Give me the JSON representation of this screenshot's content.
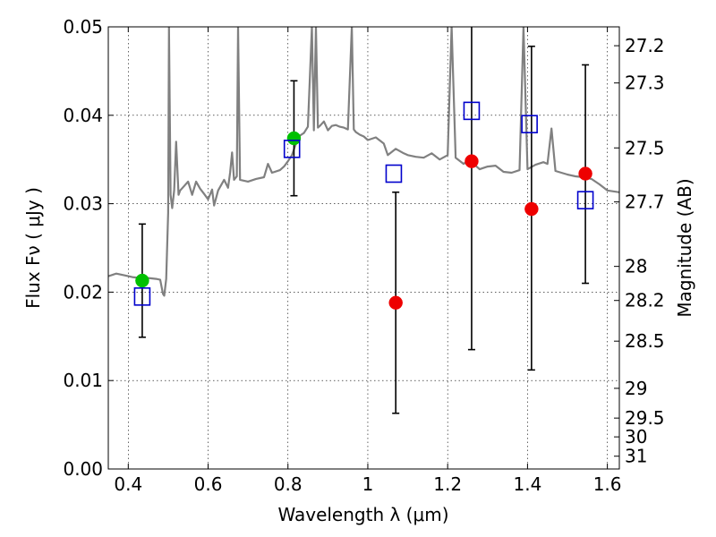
{
  "chart_data": {
    "type": "scatter",
    "title": "",
    "xlabel": "Wavelength  λ (μm)",
    "ylabel": "Flux  Fν  ( μJy )",
    "y2label": "Magnitude (AB)",
    "xlim": [
      0.35,
      1.63
    ],
    "ylim": [
      0.0,
      0.05
    ],
    "grid": true,
    "xticks": [
      0.4,
      0.6,
      0.8,
      1.0,
      1.2,
      1.4,
      1.6
    ],
    "xtick_labels": [
      "0.4",
      "0.6",
      "0.8",
      "1",
      "1.2",
      "1.4",
      "1.6"
    ],
    "yticks": [
      0.0,
      0.01,
      0.02,
      0.03,
      0.04,
      0.05
    ],
    "ytick_labels": [
      "0.00",
      "0.01",
      "0.02",
      "0.03",
      "0.04",
      "0.05"
    ],
    "magnitude_ticks": [
      "27.2",
      "27.3",
      "27.5",
      "27.7",
      "28",
      "28.2",
      "28.5",
      "29",
      "29.5",
      "30",
      "31"
    ],
    "colors": {
      "model": "#808080",
      "observed_green": "#00c000",
      "observed_red": "#ee0000",
      "model_flux": "#0000cc",
      "errorbar": "#000000"
    },
    "series": [
      {
        "kind": "line",
        "points": [
          [
            0.35,
            0.0218
          ],
          [
            0.37,
            0.0221
          ],
          [
            0.39,
            0.0219
          ],
          [
            0.41,
            0.0217
          ],
          [
            0.43,
            0.0216
          ],
          [
            0.45,
            0.0216
          ],
          [
            0.47,
            0.0215
          ],
          [
            0.48,
            0.0214
          ],
          [
            0.487,
            0.0198
          ],
          [
            0.49,
            0.0196
          ],
          [
            0.495,
            0.0215
          ],
          [
            0.5,
            0.029
          ],
          [
            0.502,
            0.05
          ],
          [
            0.506,
            0.031
          ],
          [
            0.51,
            0.0295
          ],
          [
            0.515,
            0.0315
          ],
          [
            0.52,
            0.037
          ],
          [
            0.526,
            0.031
          ],
          [
            0.53,
            0.0315
          ],
          [
            0.54,
            0.032
          ],
          [
            0.55,
            0.0325
          ],
          [
            0.56,
            0.031
          ],
          [
            0.57,
            0.0325
          ],
          [
            0.58,
            0.0317
          ],
          [
            0.59,
            0.0311
          ],
          [
            0.6,
            0.0305
          ],
          [
            0.61,
            0.0316
          ],
          [
            0.615,
            0.0298
          ],
          [
            0.625,
            0.0315
          ],
          [
            0.64,
            0.0327
          ],
          [
            0.65,
            0.0318
          ],
          [
            0.655,
            0.0335
          ],
          [
            0.66,
            0.0358
          ],
          [
            0.665,
            0.0327
          ],
          [
            0.672,
            0.0331
          ],
          [
            0.675,
            0.05
          ],
          [
            0.68,
            0.0327
          ],
          [
            0.7,
            0.0325
          ],
          [
            0.72,
            0.0328
          ],
          [
            0.74,
            0.033
          ],
          [
            0.75,
            0.0345
          ],
          [
            0.755,
            0.034
          ],
          [
            0.76,
            0.0335
          ],
          [
            0.78,
            0.0338
          ],
          [
            0.79,
            0.0342
          ],
          [
            0.8,
            0.0348
          ],
          [
            0.81,
            0.0355
          ],
          [
            0.82,
            0.0368
          ],
          [
            0.83,
            0.0377
          ],
          [
            0.84,
            0.038
          ],
          [
            0.85,
            0.0387
          ],
          [
            0.86,
            0.05
          ],
          [
            0.865,
            0.0383
          ],
          [
            0.87,
            0.05
          ],
          [
            0.875,
            0.0386
          ],
          [
            0.88,
            0.0388
          ],
          [
            0.89,
            0.0393
          ],
          [
            0.9,
            0.0383
          ],
          [
            0.91,
            0.0388
          ],
          [
            0.92,
            0.0389
          ],
          [
            0.93,
            0.0387
          ],
          [
            0.94,
            0.0386
          ],
          [
            0.95,
            0.0384
          ],
          [
            0.96,
            0.05
          ],
          [
            0.965,
            0.0384
          ],
          [
            0.97,
            0.0381
          ],
          [
            0.98,
            0.0378
          ],
          [
            0.99,
            0.0376
          ],
          [
            1.0,
            0.0372
          ],
          [
            1.02,
            0.0375
          ],
          [
            1.04,
            0.0368
          ],
          [
            1.05,
            0.0355
          ],
          [
            1.07,
            0.0362
          ],
          [
            1.09,
            0.0357
          ],
          [
            1.1,
            0.0355
          ],
          [
            1.12,
            0.0353
          ],
          [
            1.14,
            0.0352
          ],
          [
            1.16,
            0.0357
          ],
          [
            1.18,
            0.035
          ],
          [
            1.2,
            0.0355
          ],
          [
            1.21,
            0.05
          ],
          [
            1.22,
            0.0352
          ],
          [
            1.24,
            0.0345
          ],
          [
            1.25,
            0.0348
          ],
          [
            1.26,
            0.0347
          ],
          [
            1.28,
            0.0339
          ],
          [
            1.3,
            0.0342
          ],
          [
            1.32,
            0.0343
          ],
          [
            1.34,
            0.0336
          ],
          [
            1.36,
            0.0335
          ],
          [
            1.38,
            0.0338
          ],
          [
            1.39,
            0.05
          ],
          [
            1.4,
            0.0339
          ],
          [
            1.42,
            0.0344
          ],
          [
            1.44,
            0.0347
          ],
          [
            1.45,
            0.0345
          ],
          [
            1.46,
            0.0385
          ],
          [
            1.47,
            0.0337
          ],
          [
            1.5,
            0.0333
          ],
          [
            1.52,
            0.0331
          ],
          [
            1.54,
            0.033
          ],
          [
            1.56,
            0.0328
          ],
          [
            1.58,
            0.0322
          ],
          [
            1.6,
            0.0315
          ],
          [
            1.63,
            0.0313
          ]
        ]
      },
      {
        "kind": "scatter",
        "marker": "circle",
        "color": "#00c000",
        "points": [
          {
            "x": 0.435,
            "y": 0.0213
          },
          {
            "x": 0.815,
            "y": 0.0374
          }
        ]
      },
      {
        "kind": "scatter",
        "marker": "circle",
        "color": "#ee0000",
        "points": [
          {
            "x": 1.07,
            "y": 0.0188
          },
          {
            "x": 1.26,
            "y": 0.0348
          },
          {
            "x": 1.41,
            "y": 0.0294
          },
          {
            "x": 1.545,
            "y": 0.0334
          }
        ]
      },
      {
        "kind": "scatter",
        "marker": "open-square",
        "color": "#0000cc",
        "points": [
          {
            "x": 0.435,
            "y": 0.0195
          },
          {
            "x": 0.81,
            "y": 0.0362
          },
          {
            "x": 1.065,
            "y": 0.0334
          },
          {
            "x": 1.26,
            "y": 0.0405
          },
          {
            "x": 1.405,
            "y": 0.039
          },
          {
            "x": 1.545,
            "y": 0.0304
          }
        ]
      },
      {
        "kind": "errorbar",
        "color": "#000000",
        "points": [
          {
            "x": 0.435,
            "low": 0.0149,
            "high": 0.0277
          },
          {
            "x": 0.815,
            "low": 0.0309,
            "high": 0.0439
          },
          {
            "x": 1.07,
            "low": 0.0063,
            "high": 0.0313
          },
          {
            "x": 1.26,
            "low": 0.0135,
            "high": 0.05
          },
          {
            "x": 1.41,
            "low": 0.0112,
            "high": 0.0478
          },
          {
            "x": 1.545,
            "low": 0.021,
            "high": 0.0457
          }
        ]
      }
    ]
  }
}
